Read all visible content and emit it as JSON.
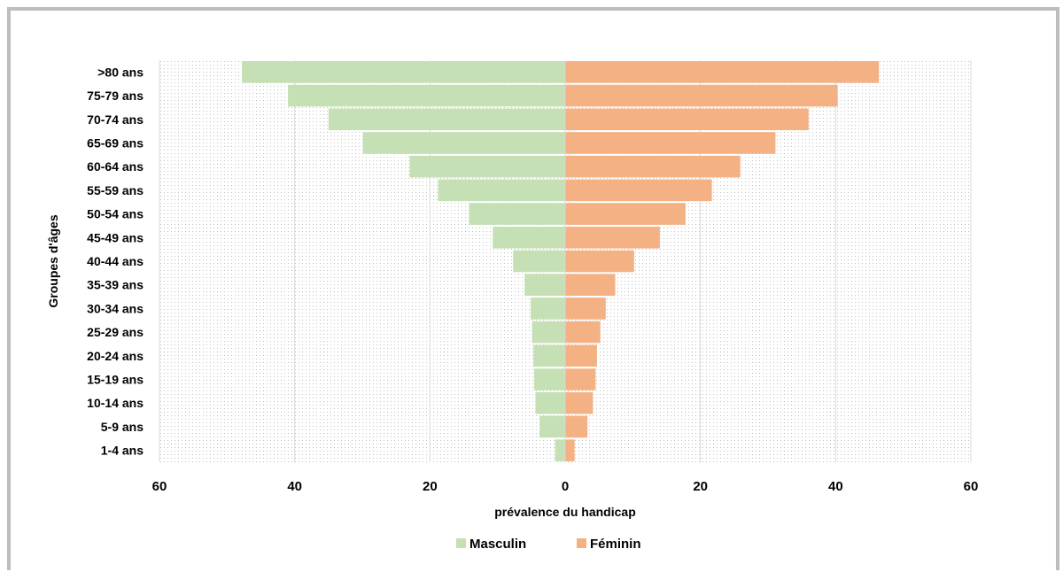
{
  "chart_data": {
    "type": "bar",
    "orientation": "horizontal",
    "layout": "population-pyramid",
    "title": "",
    "xlabel": "prévalence du handicap",
    "ylabel": "Groupes d'âges",
    "xlim": [
      -60,
      60
    ],
    "xticks": [
      -60,
      -40,
      -20,
      0,
      20,
      40,
      60
    ],
    "xtick_labels": [
      "60",
      "40",
      "20",
      "0",
      "20",
      "40",
      "60"
    ],
    "categories": [
      "1-4 ans",
      "5-9 ans",
      "10-14 ans",
      "15-19 ans",
      "20-24 ans",
      "25-29 ans",
      "30-34 ans",
      "35-39 ans",
      "40-44 ans",
      "45-49 ans",
      "50-54 ans",
      "55-59 ans",
      "60-64 ans",
      "65-69 ans",
      "70-74 ans",
      "75-79 ans",
      ">80 ans"
    ],
    "series": [
      {
        "name": "Masculin",
        "color": "#c5e0b4",
        "values": [
          1.5,
          3.8,
          4.4,
          4.6,
          4.7,
          4.9,
          5.1,
          6.0,
          7.7,
          10.7,
          14.2,
          18.8,
          23.0,
          29.9,
          35.0,
          41.0,
          47.8
        ]
      },
      {
        "name": "Féminin",
        "color": "#f4b183",
        "values": [
          1.4,
          3.3,
          4.1,
          4.5,
          4.7,
          5.2,
          6.0,
          7.4,
          10.2,
          14.0,
          17.8,
          21.7,
          25.9,
          31.1,
          36.0,
          40.3,
          46.4
        ]
      }
    ],
    "grid": "vertical",
    "legend_position": "bottom"
  }
}
